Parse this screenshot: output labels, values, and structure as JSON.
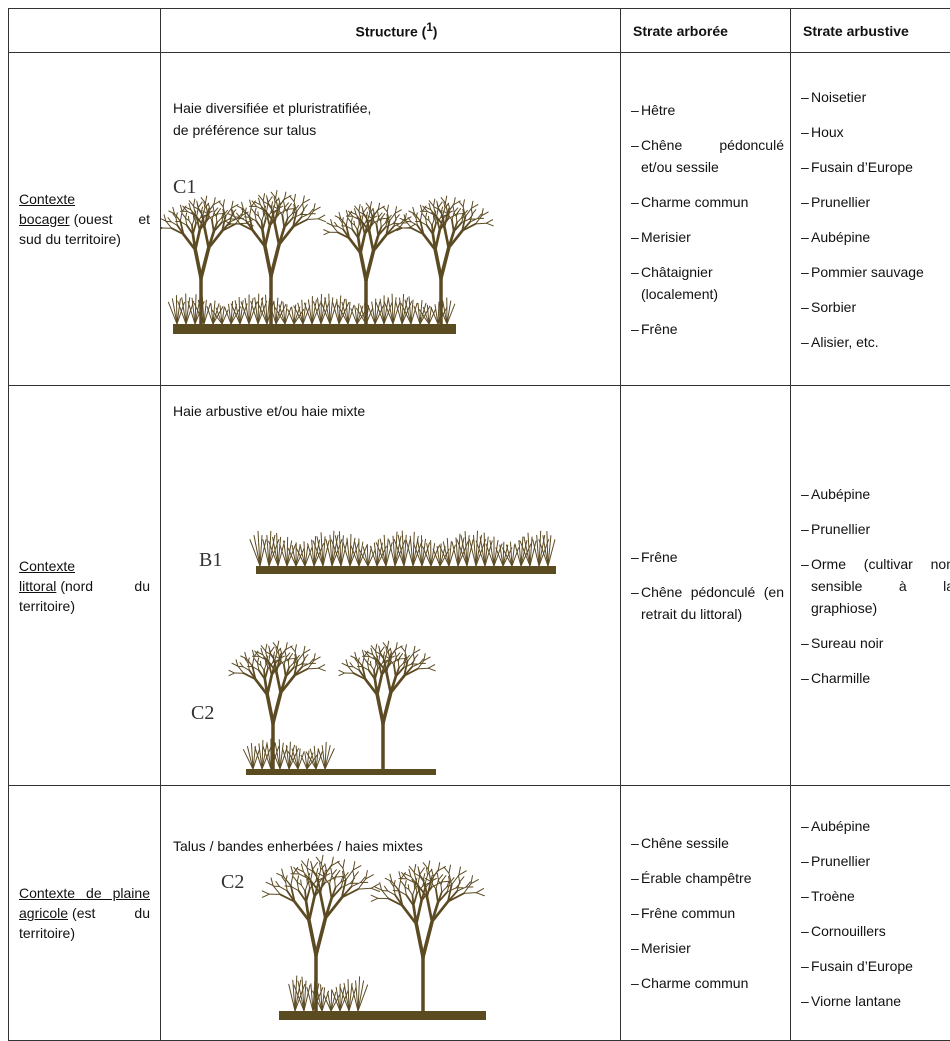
{
  "bullet": "–",
  "header": {
    "structure": {
      "text": "Structure (",
      "sup": "1",
      "close": ")"
    },
    "arboree": "Strate arborée",
    "arbustive": "Strate arbustive"
  },
  "rows": [
    {
      "context": {
        "link": "Contexte bocager",
        "rest": "(ouest et sud du territoire)"
      },
      "structure": [
        "Haie diversifiée et pluristratifiée,",
        "de préférence sur talus"
      ],
      "figures": [
        "C1"
      ],
      "arboree": [
        "Hêtre",
        "Chêne pédonculé et/ou sessile",
        "Charme commun",
        "Merisier",
        "Châtaignier (localement)",
        "Frêne"
      ],
      "arbustive": [
        "Noisetier",
        "Houx",
        "Fusain d’Europe",
        "Prunellier",
        "Aubépine",
        "Pommier sauvage",
        "Sorbier",
        "Alisier, etc."
      ]
    },
    {
      "context": {
        "link": "Contexte littoral",
        "rest": "(nord du territoire)"
      },
      "structure": [
        "Haie arbustive et/ou haie mixte"
      ],
      "figures": [
        "B1",
        "C2"
      ],
      "arboree": [
        "Frêne",
        "Chêne pédonculé (en retrait du littoral)"
      ],
      "arbustive": [
        "Aubépine",
        "Prunellier",
        "Orme (cultivar non sensible à la graphiose)",
        "Sureau noir",
        "Charmille"
      ]
    },
    {
      "context": {
        "link": "Contexte de plaine agricole",
        "rest": "(est du territoire)"
      },
      "structure": [
        "Talus / bandes enherbées / haies mixtes"
      ],
      "figures": [
        "C2"
      ],
      "arboree": [
        "Chêne sessile",
        "Érable champêtre",
        "Frêne commun",
        "Merisier",
        "Charme commun"
      ],
      "arbustive": [
        "Aubépine",
        "Prunellier",
        "Troène",
        "Cornouillers",
        "Fusain d’Europe",
        "Viorne lantane"
      ]
    }
  ]
}
